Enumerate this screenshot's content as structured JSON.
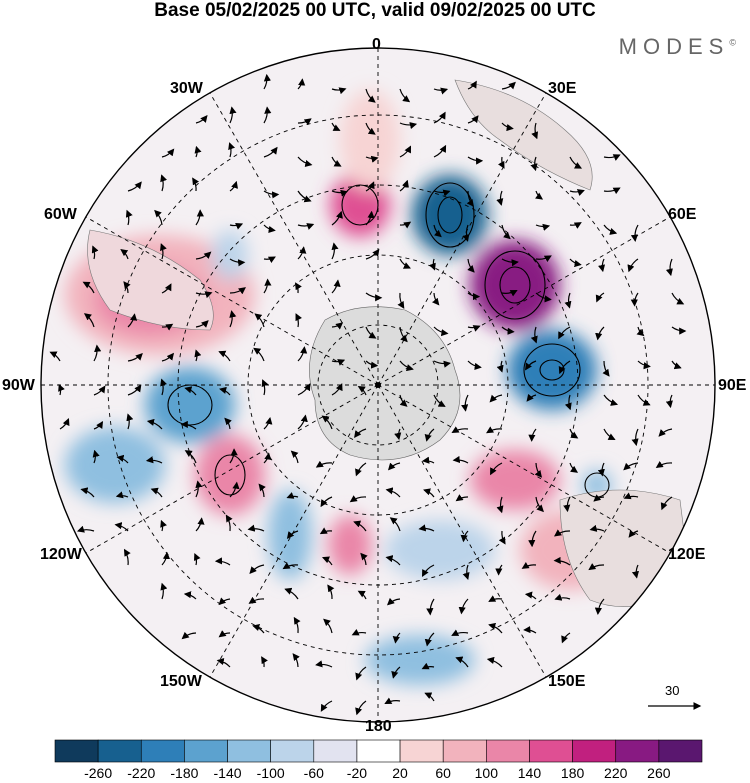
{
  "title": "Base 05/02/2025 00 UTC, valid 09/02/2025 00 UTC",
  "brand": "MODES",
  "brand_mark": "©",
  "longitude_labels": {
    "lon_0": "0",
    "lon_30e": "30E",
    "lon_60e": "60E",
    "lon_90e": "90E",
    "lon_120e": "120E",
    "lon_150e": "150E",
    "lon_180": "180",
    "lon_150w": "150W",
    "lon_120w": "120W",
    "lon_90w": "90W",
    "lon_60w": "60W",
    "lon_30w": "30W"
  },
  "reference_vector": "30",
  "colorbar": {
    "ticks": [
      "-260",
      "-220",
      "-180",
      "-140",
      "-100",
      "-60",
      "-20",
      "20",
      "60",
      "100",
      "140",
      "180",
      "220",
      "260"
    ],
    "colors": [
      "#0f3a5c",
      "#17608f",
      "#2e7fb8",
      "#5ca2cf",
      "#8fbfe0",
      "#bcd4ea",
      "#e2e3f0",
      "#ffffff",
      "#f7d4d4",
      "#f2b3bd",
      "#ea86a8",
      "#df4f93",
      "#c1207f",
      "#881a82",
      "#5a176f"
    ]
  },
  "icons": [
    "pole-dot-icon",
    "arrow-icon"
  ]
}
